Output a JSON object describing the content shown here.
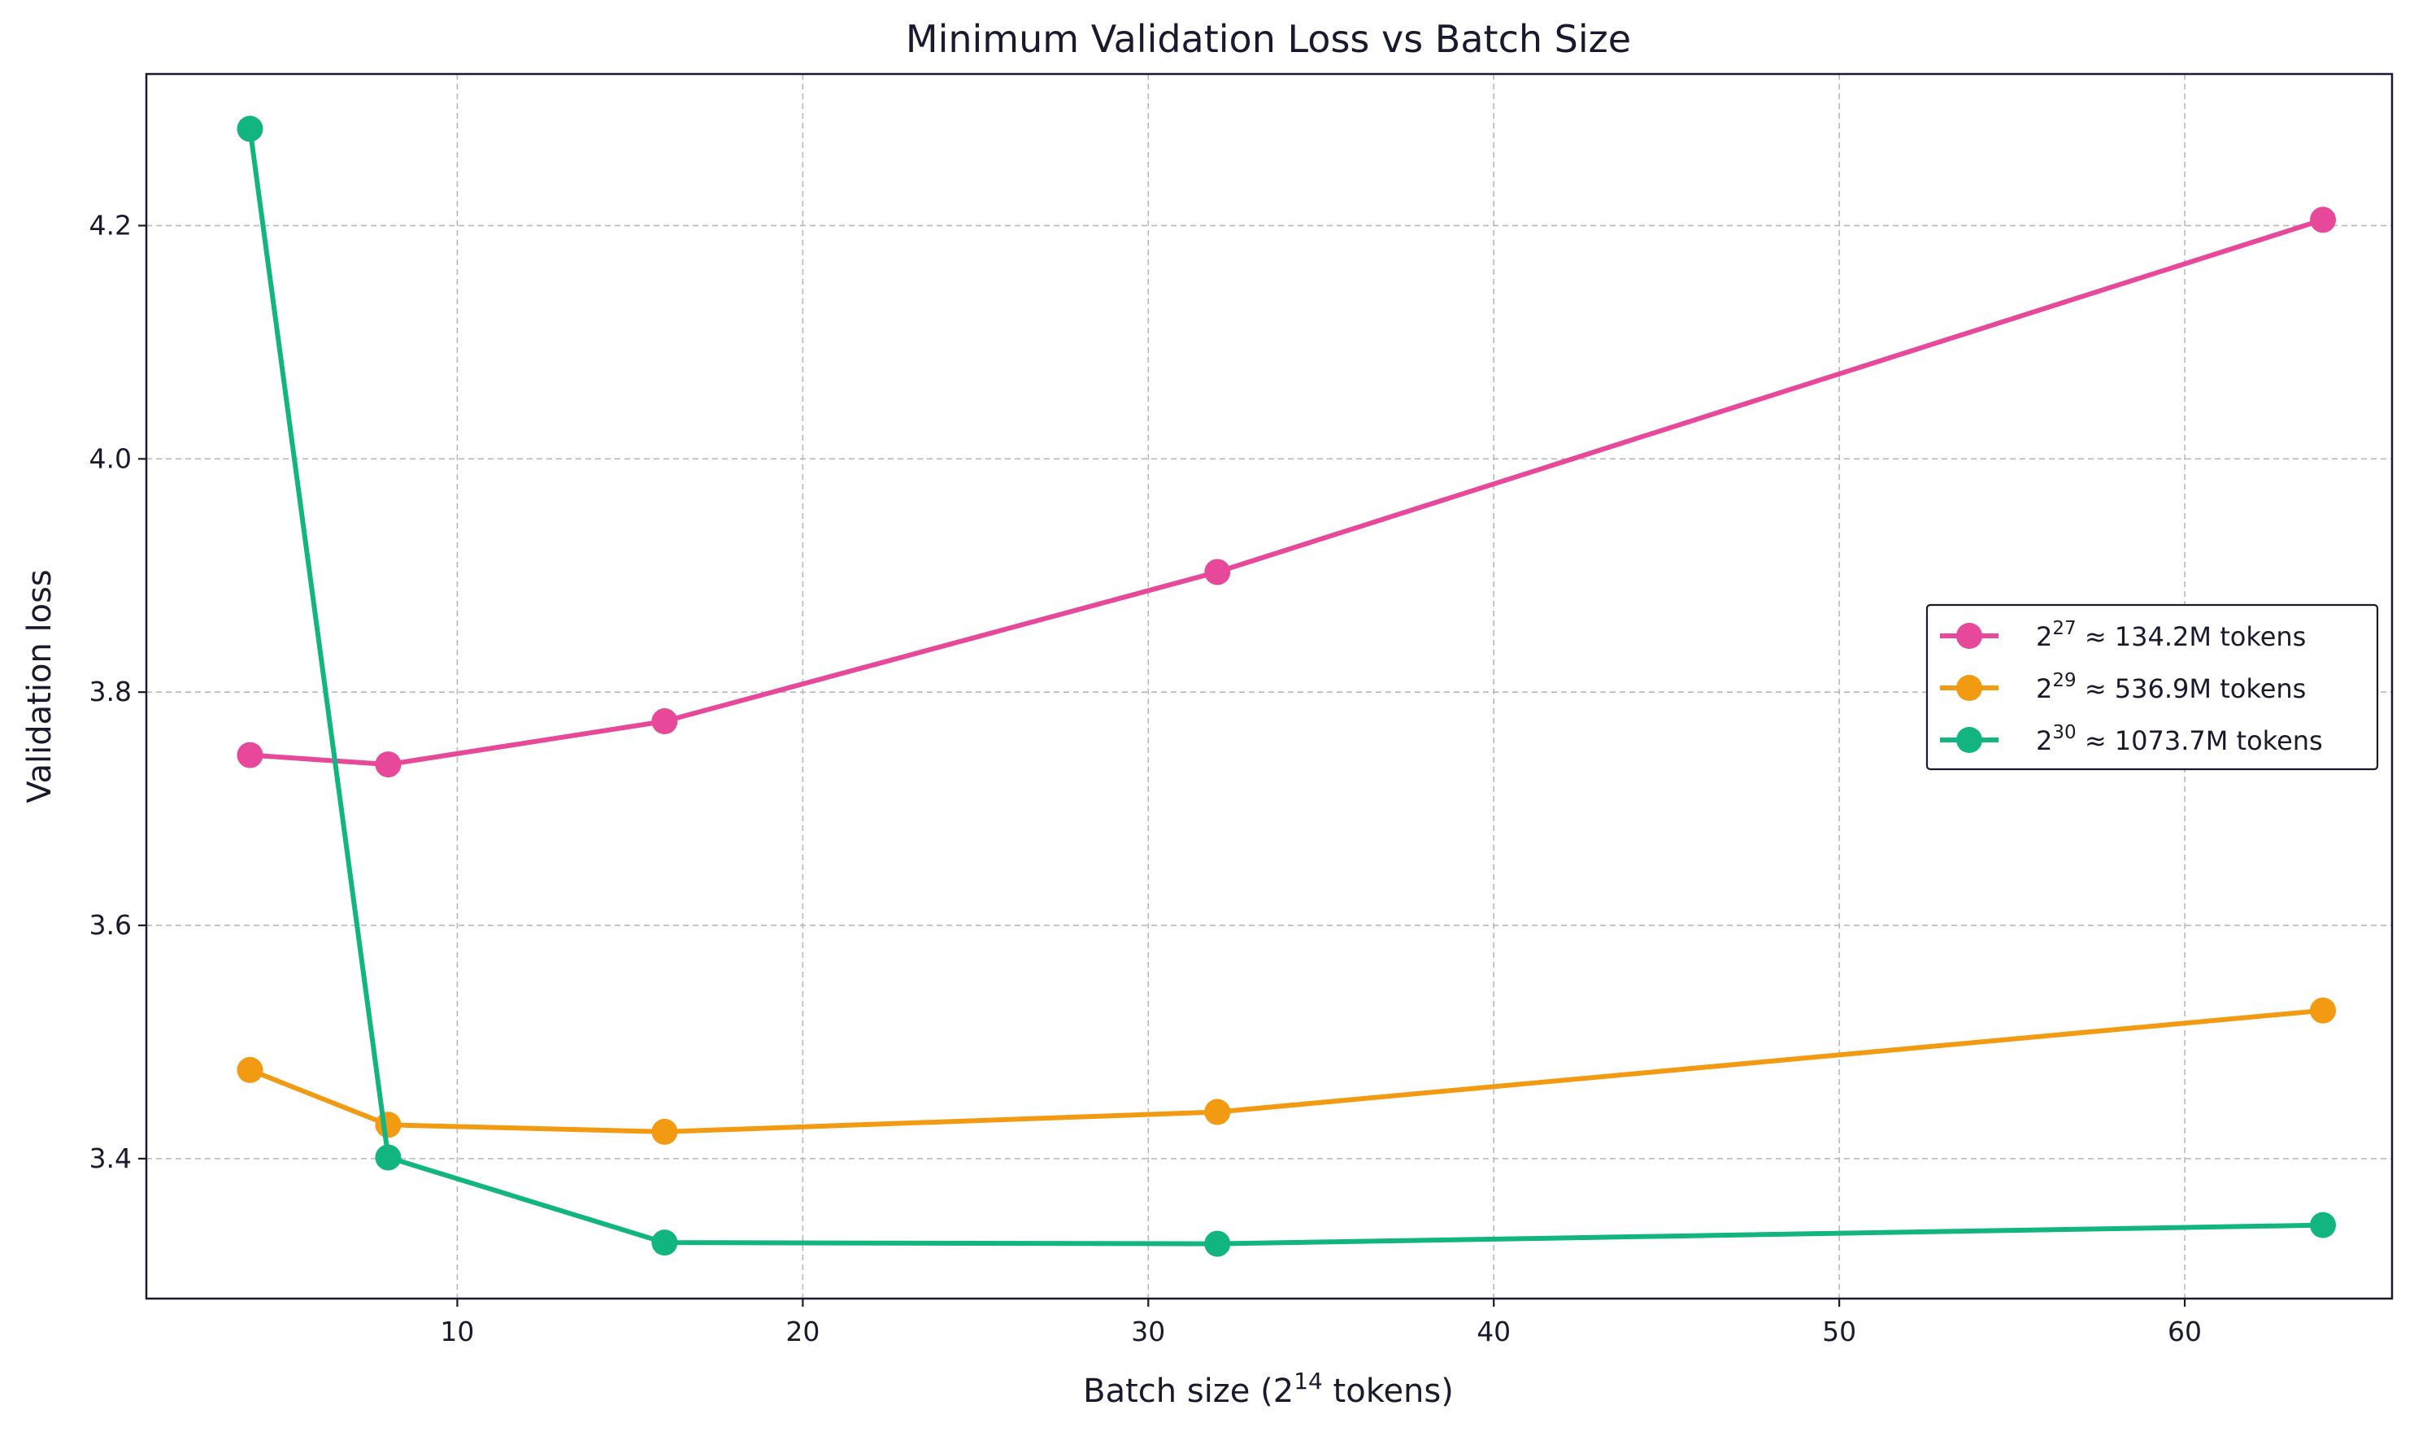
{
  "chart_data": {
    "type": "line",
    "title": "Minimum Validation Loss vs Batch Size",
    "xlabel": "Batch size (2",
    "xlabel_exp": "14",
    "xlabel_tail": " tokens)",
    "ylabel": "Validation loss",
    "xlim": [
      1,
      66
    ],
    "ylim": [
      3.28,
      4.33
    ],
    "xticks": [
      10,
      20,
      30,
      40,
      50,
      60
    ],
    "xtick_labels": [
      "10",
      "20",
      "30",
      "40",
      "50",
      "60"
    ],
    "yticks": [
      3.4,
      3.6,
      3.8,
      4.0,
      4.2
    ],
    "ytick_labels": [
      "3.4",
      "3.6",
      "3.8",
      "4.0",
      "4.2"
    ],
    "grid": true,
    "legend_position": "center-right",
    "x": [
      4,
      8,
      16,
      32,
      64
    ],
    "series": [
      {
        "name": "2^27 ≈ 134.2M tokens",
        "base": "2",
        "exp": "27",
        "rest": " ≈ 134.2M tokens",
        "color": "#e8489a",
        "values": [
          3.746,
          3.738,
          3.775,
          3.903,
          4.205
        ]
      },
      {
        "name": "2^29 ≈ 536.9M tokens",
        "base": "2",
        "exp": "29",
        "rest": " ≈ 536.9M tokens",
        "color": "#f29b12",
        "values": [
          3.476,
          3.429,
          3.423,
          3.44,
          3.527
        ]
      },
      {
        "name": "2^30 ≈ 1073.7M tokens",
        "base": "2",
        "exp": "30",
        "rest": " ≈ 1073.7M tokens",
        "color": "#12b57f",
        "values": [
          4.283,
          3.401,
          3.328,
          3.327,
          3.343
        ]
      }
    ]
  }
}
